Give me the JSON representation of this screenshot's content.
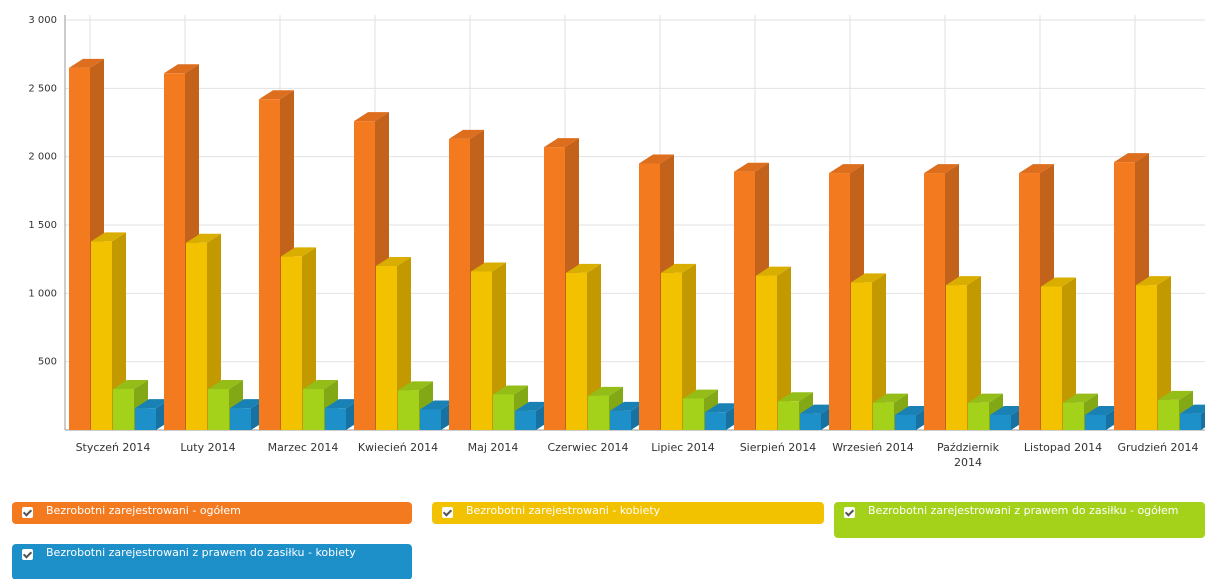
{
  "chart_data": {
    "type": "bar3d",
    "categories": [
      "Styczeń 2014",
      "Luty 2014",
      "Marzec 2014",
      "Kwiecień 2014",
      "Maj 2014",
      "Czerwiec 2014",
      "Lipiec 2014",
      "Sierpień 2014",
      "Wrzesień 2014",
      "Październik 2014",
      "Listopad 2014",
      "Grudzień 2014"
    ],
    "series": [
      {
        "name": "Bezrobotni zarejestrowani - ogółem",
        "color": "#f47a20",
        "values": [
          2650,
          2610,
          2420,
          2260,
          2130,
          2070,
          1950,
          1890,
          1880,
          1880,
          1880,
          1960
        ]
      },
      {
        "name": "Bezrobotni zarejestrowani - kobiety",
        "color": "#f2c100",
        "values": [
          1380,
          1370,
          1270,
          1200,
          1160,
          1150,
          1150,
          1130,
          1080,
          1060,
          1050,
          1060
        ]
      },
      {
        "name": "Bezrobotni zarejestrowani z prawem do zasiłku - ogółem",
        "color": "#a4d21b",
        "values": [
          300,
          300,
          300,
          290,
          260,
          250,
          230,
          210,
          200,
          200,
          200,
          220
        ]
      },
      {
        "name": "Bezrobotni zarejestrowani z prawem do zasiłku - kobiety",
        "color": "#1d8fc9",
        "values": [
          160,
          160,
          160,
          150,
          140,
          140,
          130,
          120,
          110,
          110,
          110,
          120
        ]
      }
    ],
    "ylim": [
      0,
      3000
    ],
    "yticks": [
      500,
      {
        "value": 1000,
        "label": "1 000"
      },
      {
        "value": 1500,
        "label": "1 500"
      },
      {
        "value": 2000,
        "label": "2 000"
      },
      {
        "value": 2500,
        "label": "2 500"
      },
      {
        "value": 3000,
        "label": "3 000"
      }
    ],
    "grid": true
  }
}
